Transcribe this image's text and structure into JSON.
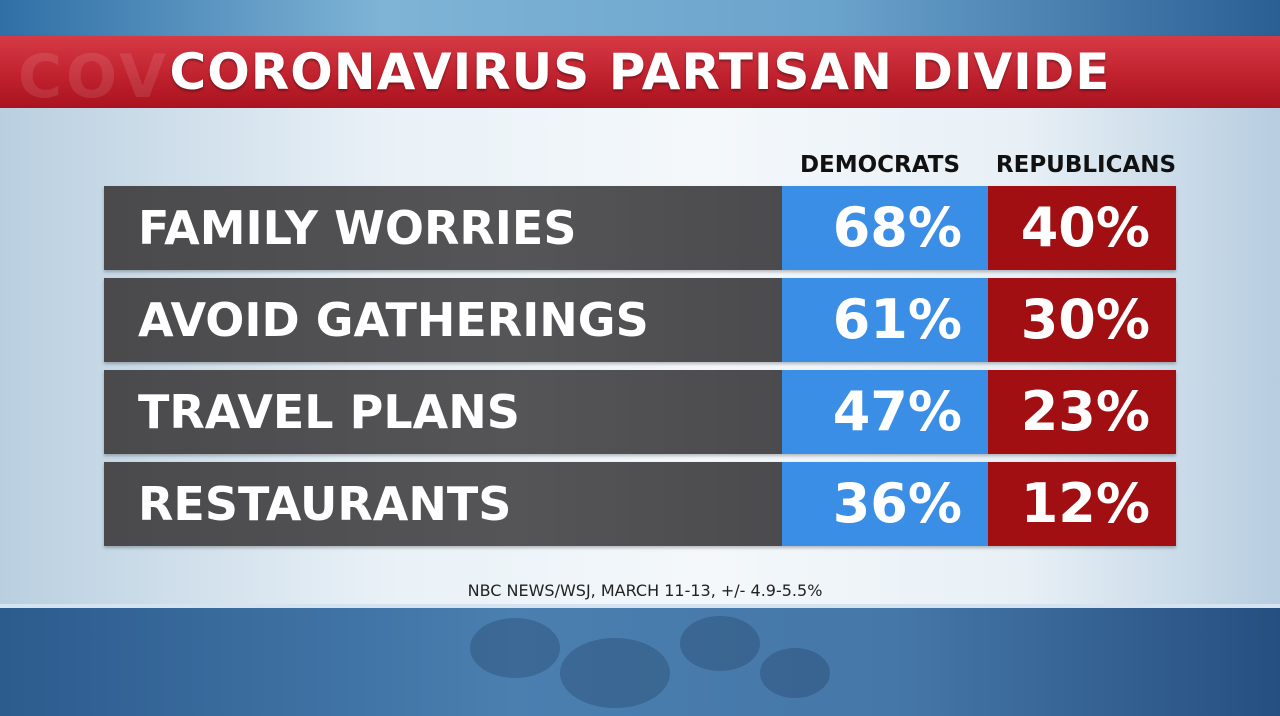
{
  "title": "CORONAVIRUS PARTISAN DIVIDE",
  "title_ghost": "COV",
  "source": "NBC NEWS/WSJ, MARCH 11-13, +/- 4.9-5.5%",
  "colors": {
    "democrats": "#3b8ee6",
    "republicans": "#a10f12",
    "title_band": "#c0222e",
    "label_bg": "#505052"
  },
  "chart_data": {
    "type": "table",
    "title": "CORONAVIRUS PARTISAN DIVIDE",
    "columns": [
      "DEMOCRATS",
      "REPUBLICANS"
    ],
    "categories": [
      "FAMILY WORRIES",
      "AVOID GATHERINGS",
      "TRAVEL PLANS",
      "RESTAURANTS"
    ],
    "series": [
      {
        "name": "DEMOCRATS",
        "values": [
          68,
          61,
          47,
          36
        ],
        "labels": [
          "68%",
          "61%",
          "47%",
          "36%"
        ]
      },
      {
        "name": "REPUBLICANS",
        "values": [
          40,
          30,
          23,
          12
        ],
        "labels": [
          "40%",
          "30%",
          "23%",
          "12%"
        ]
      }
    ]
  }
}
